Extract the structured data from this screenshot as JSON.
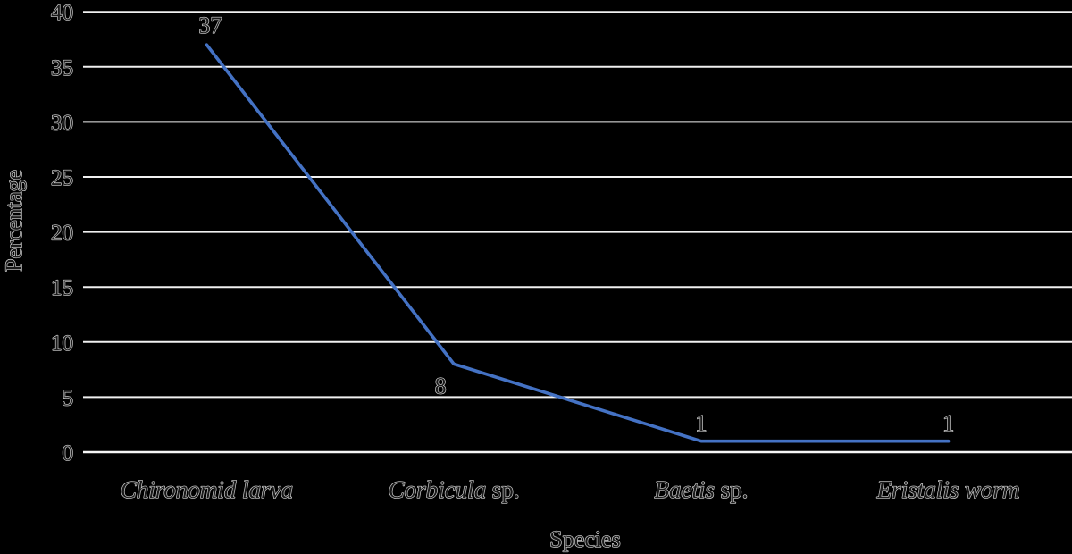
{
  "page": {
    "background": "#000000"
  },
  "chart_data": {
    "type": "line",
    "title": "",
    "xlabel": "Species",
    "ylabel": "Percentage",
    "categories": [
      "Chironomid larva",
      "Corbicula sp.",
      "Baetis sp.",
      "Eristalis worm"
    ],
    "category_parts": [
      [
        {
          "text": "Chironomid larva",
          "italic": true
        }
      ],
      [
        {
          "text": "Corbicula",
          "italic": true
        },
        {
          "text": " sp.",
          "italic": false
        }
      ],
      [
        {
          "text": "Baetis",
          "italic": true
        },
        {
          "text": " sp.",
          "italic": false
        }
      ],
      [
        {
          "text": "Eristalis worm",
          "italic": true
        }
      ]
    ],
    "series": [
      {
        "name": "Percentage",
        "values": [
          37,
          8,
          1,
          1
        ]
      }
    ],
    "data_labels": [
      "37",
      "8",
      "1",
      "1"
    ],
    "yticks": [
      0,
      5,
      10,
      15,
      20,
      25,
      30,
      35,
      40
    ],
    "ylim": [
      0,
      40
    ],
    "grid": true,
    "legend": "none",
    "line_color": "#4472C4",
    "gridline_color": "#f0f0f0",
    "axis_line_color": "#f5f5f5",
    "text_fill_color": "#1a1a1a",
    "text_halo_color": "#d8d8d8",
    "background_color": "#000000"
  }
}
